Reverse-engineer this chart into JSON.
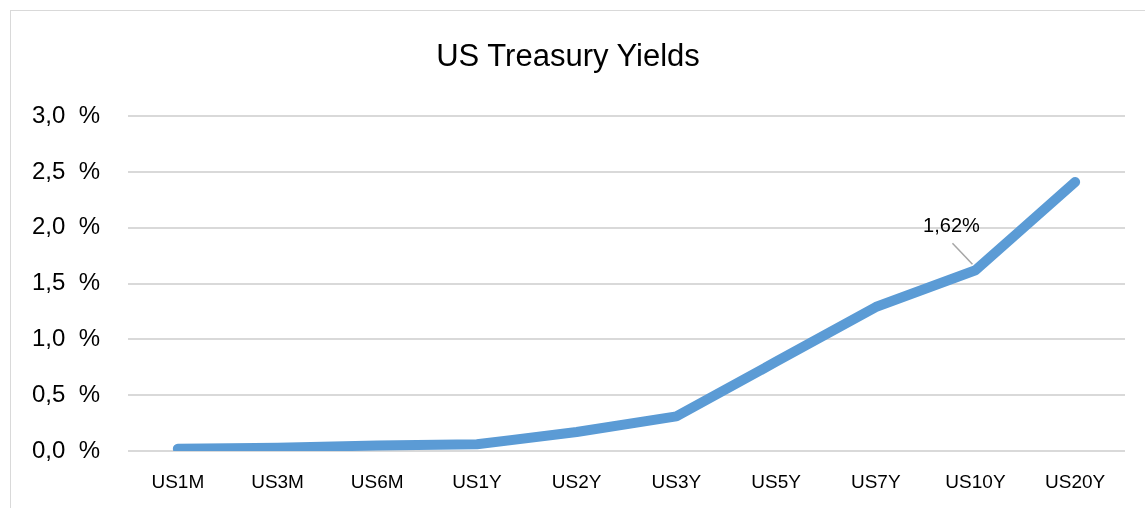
{
  "chart_data": {
    "type": "line",
    "title": "US Treasury Yields",
    "categories": [
      "US1M",
      "US3M",
      "US6M",
      "US1Y",
      "US2Y",
      "US3Y",
      "US5Y",
      "US7Y",
      "US10Y",
      "US20Y"
    ],
    "series": [
      {
        "color": "#5b9bd5",
        "values": [
          0.02,
          0.03,
          0.05,
          0.06,
          0.17,
          0.31,
          0.8,
          1.29,
          1.62,
          2.41
        ],
        "value_labels": [
          null,
          null,
          null,
          null,
          null,
          null,
          null,
          null,
          "1,62%",
          null
        ]
      }
    ],
    "ylim": [
      0,
      3
    ],
    "yticks": [
      {
        "value": 0,
        "label": "0,0  %"
      },
      {
        "value": 0.5,
        "label": "0,5  %"
      },
      {
        "value": 1,
        "label": "1,0  %"
      },
      {
        "value": 1.5,
        "label": "1,5  %"
      },
      {
        "value": 2,
        "label": "2,0  %"
      },
      {
        "value": 2.5,
        "label": "2,5  %"
      },
      {
        "value": 3,
        "label": "3,0  %"
      }
    ],
    "grid": "y",
    "legend": false,
    "marker": "none",
    "line_style": "solid"
  }
}
